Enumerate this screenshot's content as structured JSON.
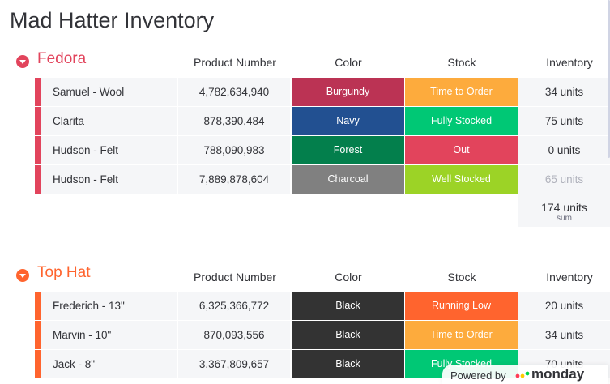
{
  "title": "Mad Hatter Inventory",
  "columns": {
    "product": "Product Number",
    "color": "Color",
    "stock": "Stock",
    "inventory": "Inventory"
  },
  "groups": [
    {
      "name": "Fedora",
      "accent": "#e2445c",
      "rows": [
        {
          "name": "Samuel - Wool",
          "number": "4,782,634,940",
          "color": "Burgundy",
          "color_hex": "#bb3354",
          "stock": "Time to Order",
          "stock_hex": "#fdab3d",
          "inventory": "34 units"
        },
        {
          "name": "Clarita",
          "number": "878,390,484",
          "color": "Navy",
          "color_hex": "#225091",
          "stock": "Fully Stocked",
          "stock_hex": "#00c875",
          "inventory": "75 units"
        },
        {
          "name": "Hudson - Felt",
          "number": "788,090,983",
          "color": "Forest",
          "color_hex": "#037f4c",
          "stock": "Out",
          "stock_hex": "#e2445c",
          "inventory": "0 units"
        },
        {
          "name": "Hudson - Felt",
          "number": "7,889,878,604",
          "color": "Charcoal",
          "color_hex": "#808080",
          "stock": "Well Stocked",
          "stock_hex": "#9cd326",
          "inventory": "65 units",
          "faded": true
        }
      ],
      "sum": {
        "value": "174 units",
        "label": "sum"
      }
    },
    {
      "name": "Top Hat",
      "accent": "#ff642e",
      "rows": [
        {
          "name": "Frederich - 13\"",
          "number": "6,325,366,772",
          "color": "Black",
          "color_hex": "#333333",
          "stock": "Running Low",
          "stock_hex": "#ff642e",
          "inventory": "20 units"
        },
        {
          "name": "Marvin - 10\"",
          "number": "870,093,556",
          "color": "Black",
          "color_hex": "#333333",
          "stock": "Time to Order",
          "stock_hex": "#fdab3d",
          "inventory": "34 units"
        },
        {
          "name": "Jack - 8\"",
          "number": "3,367,809,657",
          "color": "Black",
          "color_hex": "#333333",
          "stock": "Fully Stocked",
          "stock_hex": "#00c875",
          "inventory": "70 units"
        }
      ]
    }
  ],
  "footer": {
    "powered": "Powered by",
    "brand": "monday"
  }
}
